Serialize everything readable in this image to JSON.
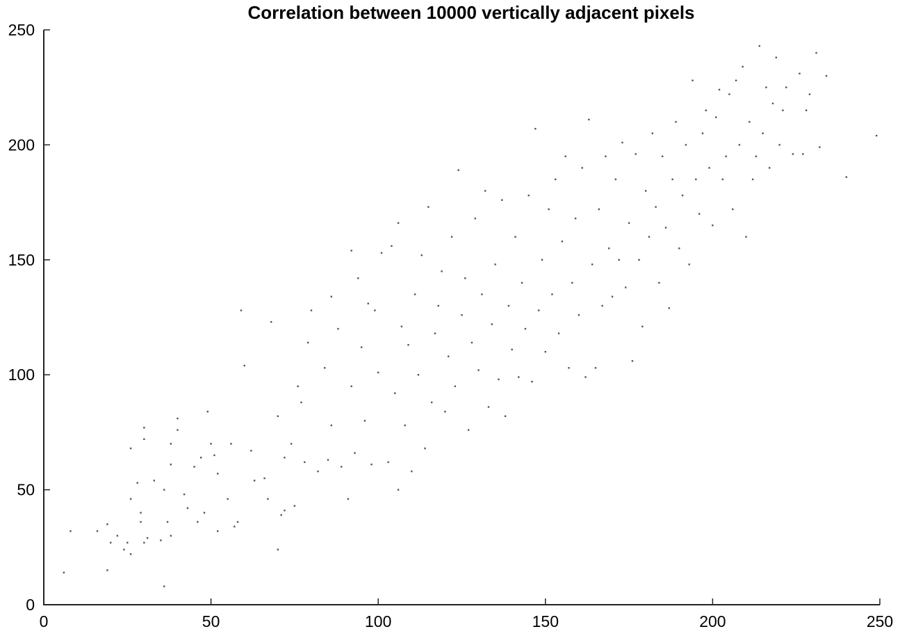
{
  "chart_data": {
    "type": "scatter",
    "title": "Correlation between 10000 vertically adjacent pixels",
    "xlabel": "",
    "ylabel": "",
    "xlim": [
      0,
      250
    ],
    "ylim": [
      0,
      250
    ],
    "xticks": [
      0,
      50,
      100,
      150,
      200,
      250
    ],
    "yticks": [
      0,
      50,
      100,
      150,
      200,
      250
    ],
    "grid": false,
    "legend": "none",
    "point_color": "#555555",
    "series": [
      {
        "values": [
          [
            6,
            14
          ],
          [
            8,
            32
          ],
          [
            16,
            32
          ],
          [
            19,
            35
          ],
          [
            19,
            15
          ],
          [
            20,
            27
          ],
          [
            22,
            30
          ],
          [
            24,
            24
          ],
          [
            25,
            27
          ],
          [
            26,
            22
          ],
          [
            26,
            46
          ],
          [
            26,
            68
          ],
          [
            28,
            53
          ],
          [
            29,
            36
          ],
          [
            29,
            40
          ],
          [
            30,
            27
          ],
          [
            30,
            72
          ],
          [
            30,
            77
          ],
          [
            31,
            29
          ],
          [
            33,
            54
          ],
          [
            35,
            28
          ],
          [
            36,
            8
          ],
          [
            36,
            50
          ],
          [
            37,
            36
          ],
          [
            38,
            30
          ],
          [
            38,
            61
          ],
          [
            38,
            70
          ],
          [
            40,
            76
          ],
          [
            40,
            81
          ],
          [
            42,
            48
          ],
          [
            43,
            42
          ],
          [
            45,
            60
          ],
          [
            46,
            36
          ],
          [
            47,
            64
          ],
          [
            48,
            40
          ],
          [
            49,
            84
          ],
          [
            50,
            70
          ],
          [
            51,
            65
          ],
          [
            52,
            32
          ],
          [
            52,
            57
          ],
          [
            55,
            46
          ],
          [
            56,
            70
          ],
          [
            57,
            34
          ],
          [
            58,
            36
          ],
          [
            59,
            128
          ],
          [
            60,
            104
          ],
          [
            62,
            67
          ],
          [
            63,
            54
          ],
          [
            66,
            55
          ],
          [
            67,
            46
          ],
          [
            68,
            123
          ],
          [
            70,
            24
          ],
          [
            70,
            82
          ],
          [
            71,
            39
          ],
          [
            72,
            41
          ],
          [
            72,
            64
          ],
          [
            74,
            70
          ],
          [
            75,
            43
          ],
          [
            76,
            95
          ],
          [
            77,
            88
          ],
          [
            78,
            62
          ],
          [
            79,
            114
          ],
          [
            80,
            128
          ],
          [
            82,
            58
          ],
          [
            84,
            103
          ],
          [
            85,
            63
          ],
          [
            86,
            134
          ],
          [
            86,
            78
          ],
          [
            88,
            120
          ],
          [
            89,
            60
          ],
          [
            91,
            46
          ],
          [
            92,
            154
          ],
          [
            92,
            95
          ],
          [
            93,
            66
          ],
          [
            94,
            142
          ],
          [
            95,
            112
          ],
          [
            96,
            80
          ],
          [
            97,
            131
          ],
          [
            98,
            61
          ],
          [
            99,
            128
          ],
          [
            100,
            101
          ],
          [
            101,
            153
          ],
          [
            103,
            62
          ],
          [
            104,
            156
          ],
          [
            105,
            92
          ],
          [
            106,
            166
          ],
          [
            106,
            50
          ],
          [
            107,
            121
          ],
          [
            108,
            78
          ],
          [
            109,
            113
          ],
          [
            110,
            58
          ],
          [
            111,
            135
          ],
          [
            112,
            100
          ],
          [
            113,
            152
          ],
          [
            114,
            68
          ],
          [
            115,
            173
          ],
          [
            116,
            88
          ],
          [
            117,
            118
          ],
          [
            118,
            130
          ],
          [
            119,
            145
          ],
          [
            120,
            84
          ],
          [
            121,
            108
          ],
          [
            122,
            160
          ],
          [
            123,
            95
          ],
          [
            124,
            189
          ],
          [
            125,
            126
          ],
          [
            126,
            142
          ],
          [
            127,
            76
          ],
          [
            128,
            114
          ],
          [
            129,
            168
          ],
          [
            130,
            102
          ],
          [
            131,
            135
          ],
          [
            132,
            180
          ],
          [
            133,
            86
          ],
          [
            134,
            122
          ],
          [
            135,
            148
          ],
          [
            136,
            98
          ],
          [
            137,
            176
          ],
          [
            138,
            82
          ],
          [
            139,
            130
          ],
          [
            140,
            111
          ],
          [
            141,
            160
          ],
          [
            142,
            99
          ],
          [
            143,
            140
          ],
          [
            144,
            120
          ],
          [
            145,
            178
          ],
          [
            146,
            97
          ],
          [
            147,
            207
          ],
          [
            148,
            128
          ],
          [
            149,
            150
          ],
          [
            150,
            110
          ],
          [
            151,
            172
          ],
          [
            152,
            135
          ],
          [
            153,
            185
          ],
          [
            154,
            118
          ],
          [
            155,
            158
          ],
          [
            156,
            195
          ],
          [
            157,
            103
          ],
          [
            158,
            140
          ],
          [
            159,
            168
          ],
          [
            160,
            126
          ],
          [
            161,
            190
          ],
          [
            162,
            99
          ],
          [
            163,
            211
          ],
          [
            164,
            148
          ],
          [
            165,
            103
          ],
          [
            166,
            172
          ],
          [
            167,
            130
          ],
          [
            168,
            195
          ],
          [
            169,
            155
          ],
          [
            170,
            134
          ],
          [
            171,
            185
          ],
          [
            172,
            150
          ],
          [
            173,
            201
          ],
          [
            174,
            138
          ],
          [
            175,
            166
          ],
          [
            176,
            106
          ],
          [
            177,
            196
          ],
          [
            178,
            150
          ],
          [
            179,
            121
          ],
          [
            180,
            180
          ],
          [
            181,
            160
          ],
          [
            182,
            205
          ],
          [
            183,
            173
          ],
          [
            184,
            140
          ],
          [
            185,
            195
          ],
          [
            186,
            164
          ],
          [
            187,
            129
          ],
          [
            188,
            185
          ],
          [
            189,
            210
          ],
          [
            190,
            155
          ],
          [
            191,
            178
          ],
          [
            192,
            200
          ],
          [
            193,
            148
          ],
          [
            194,
            228
          ],
          [
            195,
            185
          ],
          [
            196,
            170
          ],
          [
            197,
            205
          ],
          [
            198,
            215
          ],
          [
            199,
            190
          ],
          [
            200,
            165
          ],
          [
            201,
            212
          ],
          [
            202,
            224
          ],
          [
            203,
            185
          ],
          [
            204,
            195
          ],
          [
            205,
            222
          ],
          [
            206,
            172
          ],
          [
            207,
            228
          ],
          [
            208,
            200
          ],
          [
            209,
            234
          ],
          [
            210,
            160
          ],
          [
            211,
            210
          ],
          [
            212,
            185
          ],
          [
            213,
            195
          ],
          [
            214,
            243
          ],
          [
            215,
            205
          ],
          [
            216,
            225
          ],
          [
            217,
            190
          ],
          [
            218,
            218
          ],
          [
            219,
            238
          ],
          [
            220,
            200
          ],
          [
            221,
            215
          ],
          [
            222,
            225
          ],
          [
            224,
            196
          ],
          [
            226,
            231
          ],
          [
            227,
            196
          ],
          [
            228,
            215
          ],
          [
            229,
            222
          ],
          [
            231,
            240
          ],
          [
            232,
            199
          ],
          [
            234,
            230
          ],
          [
            240,
            186
          ],
          [
            249,
            204
          ]
        ]
      }
    ]
  }
}
